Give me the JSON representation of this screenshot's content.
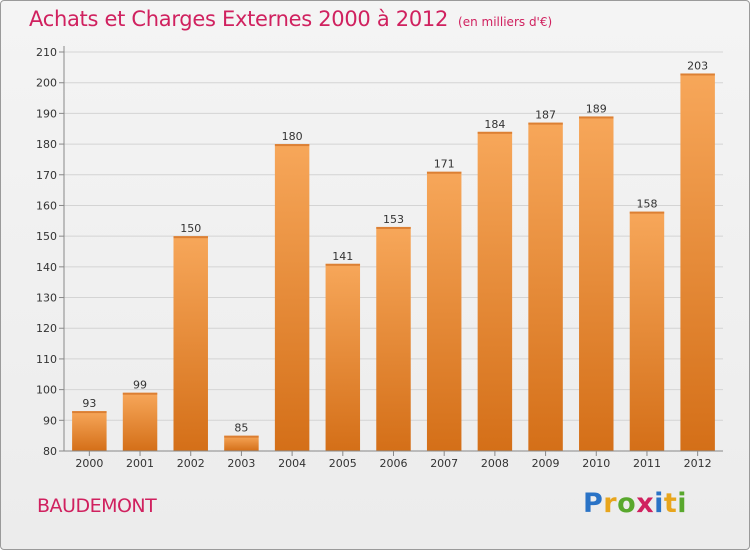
{
  "title": "Achats et Charges Externes 2000 à 2012",
  "subtitle": "(en milliers d'€)",
  "commune": "BAUDEMONT",
  "logo": {
    "letters": [
      "P",
      "r",
      "o",
      "x",
      "i",
      "t",
      "i"
    ],
    "colors": [
      "#2a73c6",
      "#e8a51c",
      "#59a82d",
      "#d0215f",
      "#2a73c6",
      "#e8a51c",
      "#59a82d"
    ]
  },
  "colors": {
    "bar_top": "#f7a75a",
    "bar_bottom": "#d46f18",
    "accent": "#d0215f"
  },
  "chart_data": {
    "type": "bar",
    "categories": [
      "2000",
      "2001",
      "2002",
      "2003",
      "2004",
      "2005",
      "2006",
      "2007",
      "2008",
      "2009",
      "2010",
      "2011",
      "2012"
    ],
    "values": [
      93,
      99,
      150,
      85,
      180,
      141,
      153,
      171,
      184,
      187,
      189,
      158,
      203
    ],
    "ylim": [
      80,
      210
    ],
    "yticks": [
      80,
      90,
      100,
      110,
      120,
      130,
      140,
      150,
      160,
      170,
      180,
      190,
      200,
      210
    ],
    "grid": true
  }
}
